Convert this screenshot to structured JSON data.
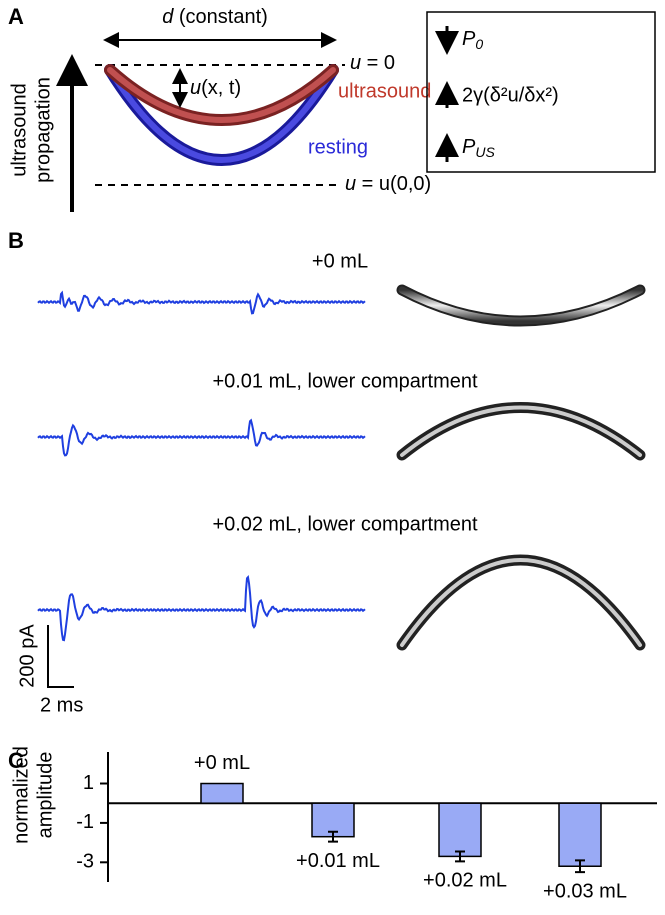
{
  "panel_a": {
    "label": "A",
    "width_label": {
      "var": "d",
      "rest": " (constant)"
    },
    "top_line": {
      "var": "u",
      "rest": " = 0"
    },
    "displacement": {
      "var": "u",
      "rest": "(x, t)"
    },
    "bottom_line": {
      "var": "u",
      "rest": " = u(0,0)"
    },
    "ultrasound_label": "ultrasound",
    "resting_label": "resting",
    "axis_label": [
      "ultrasound",
      "propagation"
    ],
    "legend": [
      {
        "symbol": "P",
        "sub": "0"
      },
      {
        "text": "2γ(δ²u/δx²)"
      },
      {
        "symbol": "P",
        "sub": "US"
      }
    ]
  },
  "panel_b": {
    "label": "B",
    "conditions": [
      "+0 mL",
      "+0.01 mL, lower compartment",
      "+0.02 mL, lower compartment"
    ],
    "scale_y": "200 pA",
    "scale_x": "2 ms"
  },
  "chart_data": {
    "type": "bar",
    "label": "C",
    "ylabel": [
      "normalized",
      "amplitude"
    ],
    "categories": [
      "+0 mL",
      "+0.01 mL",
      "+0.02 mL",
      "+0.03 mL"
    ],
    "values": [
      1,
      -1.7,
      -2.7,
      -3.2
    ],
    "errors": [
      0,
      0.25,
      0.25,
      0.3
    ],
    "color": "#99aaf5",
    "ylim": [
      -4,
      2.6
    ],
    "yticks": [
      1,
      -1,
      -3
    ]
  }
}
